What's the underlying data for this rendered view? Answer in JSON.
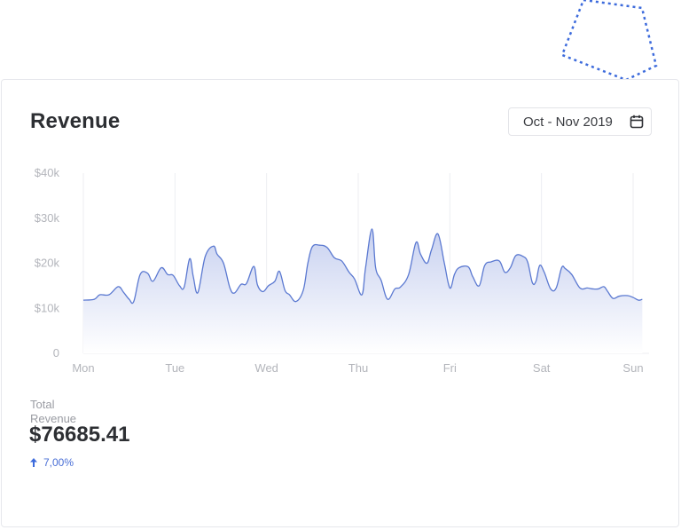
{
  "header": {
    "title": "Revenue",
    "date_range": "Oct - Nov 2019",
    "calendar_icon": "calendar-icon"
  },
  "summary": {
    "label": "Total Revenue",
    "value": "$76685.41",
    "change": "7,00%",
    "change_direction": "up",
    "change_icon": "arrow-up-icon"
  },
  "colors": {
    "line": "#5b79d1",
    "area_top": "#c8d1f0",
    "area_bottom": "#ffffff",
    "accent": "#3d6bdc",
    "grid": "#eceef2",
    "tick_text": "#b3b5bb"
  },
  "chart_data": {
    "type": "area",
    "title": "",
    "xlabel": "",
    "ylabel": "",
    "x_ticks": [
      "Mon",
      "Tue",
      "Wed",
      "Thu",
      "Fri",
      "Sat",
      "Sun"
    ],
    "y_ticks": [
      "0",
      "$10k",
      "$20k",
      "$30k",
      "$40k"
    ],
    "ylim": [
      0,
      40000
    ],
    "xlim": [
      0,
      6
    ],
    "grid": "vertical",
    "series": [
      {
        "values": [
          [
            0.0,
            11800
          ],
          [
            0.12,
            12000
          ],
          [
            0.18,
            13000
          ],
          [
            0.28,
            13000
          ],
          [
            0.38,
            14800
          ],
          [
            0.44,
            13500
          ],
          [
            0.5,
            12000
          ],
          [
            0.55,
            11500
          ],
          [
            0.62,
            17500
          ],
          [
            0.7,
            17800
          ],
          [
            0.76,
            16000
          ],
          [
            0.85,
            19000
          ],
          [
            0.92,
            17500
          ],
          [
            0.98,
            17300
          ],
          [
            1.05,
            15000
          ],
          [
            1.1,
            14700
          ],
          [
            1.16,
            21000
          ],
          [
            1.2,
            17000
          ],
          [
            1.25,
            13500
          ],
          [
            1.33,
            21500
          ],
          [
            1.42,
            23800
          ],
          [
            1.46,
            22000
          ],
          [
            1.53,
            20000
          ],
          [
            1.6,
            14500
          ],
          [
            1.65,
            13400
          ],
          [
            1.72,
            15300
          ],
          [
            1.78,
            15500
          ],
          [
            1.86,
            19300
          ],
          [
            1.9,
            15200
          ],
          [
            1.96,
            13700
          ],
          [
            2.02,
            15000
          ],
          [
            2.09,
            16000
          ],
          [
            2.14,
            18200
          ],
          [
            2.2,
            14000
          ],
          [
            2.25,
            13000
          ],
          [
            2.32,
            11500
          ],
          [
            2.4,
            14000
          ],
          [
            2.45,
            20000
          ],
          [
            2.5,
            23700
          ],
          [
            2.58,
            24000
          ],
          [
            2.66,
            23500
          ],
          [
            2.74,
            21200
          ],
          [
            2.82,
            20500
          ],
          [
            2.9,
            18000
          ],
          [
            2.96,
            16500
          ],
          [
            3.04,
            13000
          ],
          [
            3.08,
            19000
          ],
          [
            3.15,
            27600
          ],
          [
            3.19,
            19000
          ],
          [
            3.25,
            16200
          ],
          [
            3.32,
            12000
          ],
          [
            3.4,
            14300
          ],
          [
            3.46,
            14700
          ],
          [
            3.55,
            17500
          ],
          [
            3.63,
            24600
          ],
          [
            3.68,
            22000
          ],
          [
            3.75,
            20000
          ],
          [
            3.8,
            23000
          ],
          [
            3.87,
            26500
          ],
          [
            3.94,
            20000
          ],
          [
            4.0,
            14500
          ],
          [
            4.05,
            17500
          ],
          [
            4.1,
            19000
          ],
          [
            4.2,
            19200
          ],
          [
            4.25,
            17000
          ],
          [
            4.32,
            15000
          ],
          [
            4.38,
            19500
          ],
          [
            4.45,
            20300
          ],
          [
            4.54,
            20500
          ],
          [
            4.6,
            18000
          ],
          [
            4.66,
            19000
          ],
          [
            4.72,
            21700
          ],
          [
            4.8,
            21500
          ],
          [
            4.85,
            20200
          ],
          [
            4.9,
            15700
          ],
          [
            4.94,
            16000
          ],
          [
            4.98,
            19500
          ],
          [
            5.03,
            18000
          ],
          [
            5.1,
            14300
          ],
          [
            5.16,
            14500
          ],
          [
            5.22,
            19000
          ],
          [
            5.26,
            18800
          ],
          [
            5.33,
            17500
          ],
          [
            5.42,
            14500
          ],
          [
            5.5,
            14500
          ],
          [
            5.56,
            14300
          ],
          [
            5.62,
            14300
          ],
          [
            5.68,
            14800
          ],
          [
            5.72,
            13800
          ],
          [
            5.78,
            12200
          ],
          [
            5.85,
            12700
          ],
          [
            5.94,
            12800
          ],
          [
            6.0,
            12400
          ],
          [
            6.06,
            11800
          ],
          [
            6.1,
            12000
          ]
        ]
      }
    ]
  }
}
